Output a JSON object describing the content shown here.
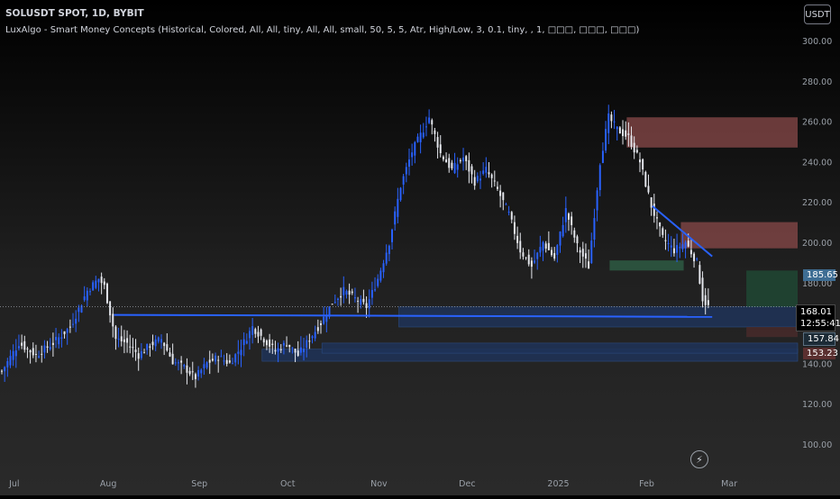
{
  "header": {
    "title": "SOLUSDT SPOT, 1D, BYBIT",
    "indicator": "LuxAlgo - Smart Money Concepts (Historical, Colored, All, All, tiny, All, All, small, 50, 5, 5, Atr, High/Low, 3, 0.1, tiny, , 1, □□□, □□□, □□□)",
    "currency_button": "USDT"
  },
  "colors": {
    "background": "#000000",
    "candle": "#2962ff",
    "candle_light": "#e6e8ee",
    "trendline": "#2962ff",
    "supply_zone": "#8a4a4a",
    "demand_zone": "#1e2f52",
    "order_block_green": "#2c5740"
  },
  "price_tags": {
    "level_a": "185.65",
    "last_price": "168.01",
    "countdown": "12:55:41",
    "level_b": "157.84",
    "level_c": "153.23"
  },
  "bolt_icon": "lightning-icon",
  "chart_data": {
    "type": "candlestick",
    "title": "SOLUSDT SPOT, 1D, BYBIT",
    "x_tick_labels": [
      "Jul",
      "Aug",
      "Sep",
      "Oct",
      "Nov",
      "Dec",
      "2025",
      "Feb",
      "Mar"
    ],
    "y_tick_labels": [
      "300.00",
      "280.00",
      "260.00",
      "240.00",
      "220.00",
      "200.00",
      "180.00",
      "160.00",
      "140.00",
      "120.00",
      "100.00"
    ],
    "ylim": [
      95,
      305
    ],
    "x_range_days": [
      0,
      245
    ],
    "grid": false,
    "last_price": 168.01,
    "price_path": [
      [
        0,
        136
      ],
      [
        6,
        150
      ],
      [
        12,
        144
      ],
      [
        18,
        150
      ],
      [
        24,
        158
      ],
      [
        30,
        176
      ],
      [
        34,
        182
      ],
      [
        36,
        178
      ],
      [
        40,
        152
      ],
      [
        44,
        150
      ],
      [
        48,
        144
      ],
      [
        52,
        149
      ],
      [
        56,
        152
      ],
      [
        60,
        141
      ],
      [
        64,
        138
      ],
      [
        68,
        133
      ],
      [
        72,
        140
      ],
      [
        76,
        143
      ],
      [
        80,
        140
      ],
      [
        84,
        148
      ],
      [
        88,
        158
      ],
      [
        92,
        152
      ],
      [
        96,
        146
      ],
      [
        100,
        150
      ],
      [
        104,
        144
      ],
      [
        108,
        152
      ],
      [
        112,
        160
      ],
      [
        116,
        170
      ],
      [
        120,
        176
      ],
      [
        124,
        172
      ],
      [
        128,
        168
      ],
      [
        132,
        182
      ],
      [
        136,
        200
      ],
      [
        140,
        228
      ],
      [
        144,
        245
      ],
      [
        148,
        256
      ],
      [
        150,
        262
      ],
      [
        154,
        244
      ],
      [
        158,
        236
      ],
      [
        162,
        242
      ],
      [
        166,
        230
      ],
      [
        170,
        236
      ],
      [
        174,
        226
      ],
      [
        178,
        214
      ],
      [
        182,
        196
      ],
      [
        186,
        188
      ],
      [
        190,
        200
      ],
      [
        194,
        192
      ],
      [
        198,
        216
      ],
      [
        202,
        198
      ],
      [
        206,
        188
      ],
      [
        210,
        240
      ],
      [
        213,
        262
      ],
      [
        216,
        256
      ],
      [
        220,
        252
      ],
      [
        224,
        240
      ],
      [
        228,
        218
      ],
      [
        232,
        202
      ],
      [
        236,
        196
      ],
      [
        240,
        200
      ],
      [
        244,
        190
      ],
      [
        246,
        172
      ],
      [
        248,
        168
      ]
    ],
    "trendlines": [
      {
        "x": [
          40,
          250
        ],
        "y": [
          164,
          163
        ]
      },
      {
        "x": [
          229,
          250
        ],
        "y": [
          218,
          193
        ]
      }
    ],
    "zones": [
      {
        "kind": "supply",
        "x": [
          220,
          280
        ],
        "y": [
          247,
          262
        ]
      },
      {
        "kind": "supply",
        "x": [
          239,
          280
        ],
        "y": [
          197,
          210
        ]
      },
      {
        "kind": "order_block",
        "x": [
          214,
          240
        ],
        "y": [
          186,
          191
        ]
      },
      {
        "kind": "demand",
        "x": [
          140,
          280
        ],
        "y": [
          158,
          168
        ]
      },
      {
        "kind": "demand",
        "x": [
          92,
          280
        ],
        "y": [
          141,
          147
        ]
      },
      {
        "kind": "demand",
        "x": [
          113,
          280
        ],
        "y": [
          145,
          150
        ]
      },
      {
        "kind": "position_target",
        "x": [
          262,
          280
        ],
        "y": [
          168,
          186
        ]
      },
      {
        "kind": "position_stop",
        "x": [
          262,
          280
        ],
        "y": [
          153,
          158
        ]
      }
    ]
  }
}
